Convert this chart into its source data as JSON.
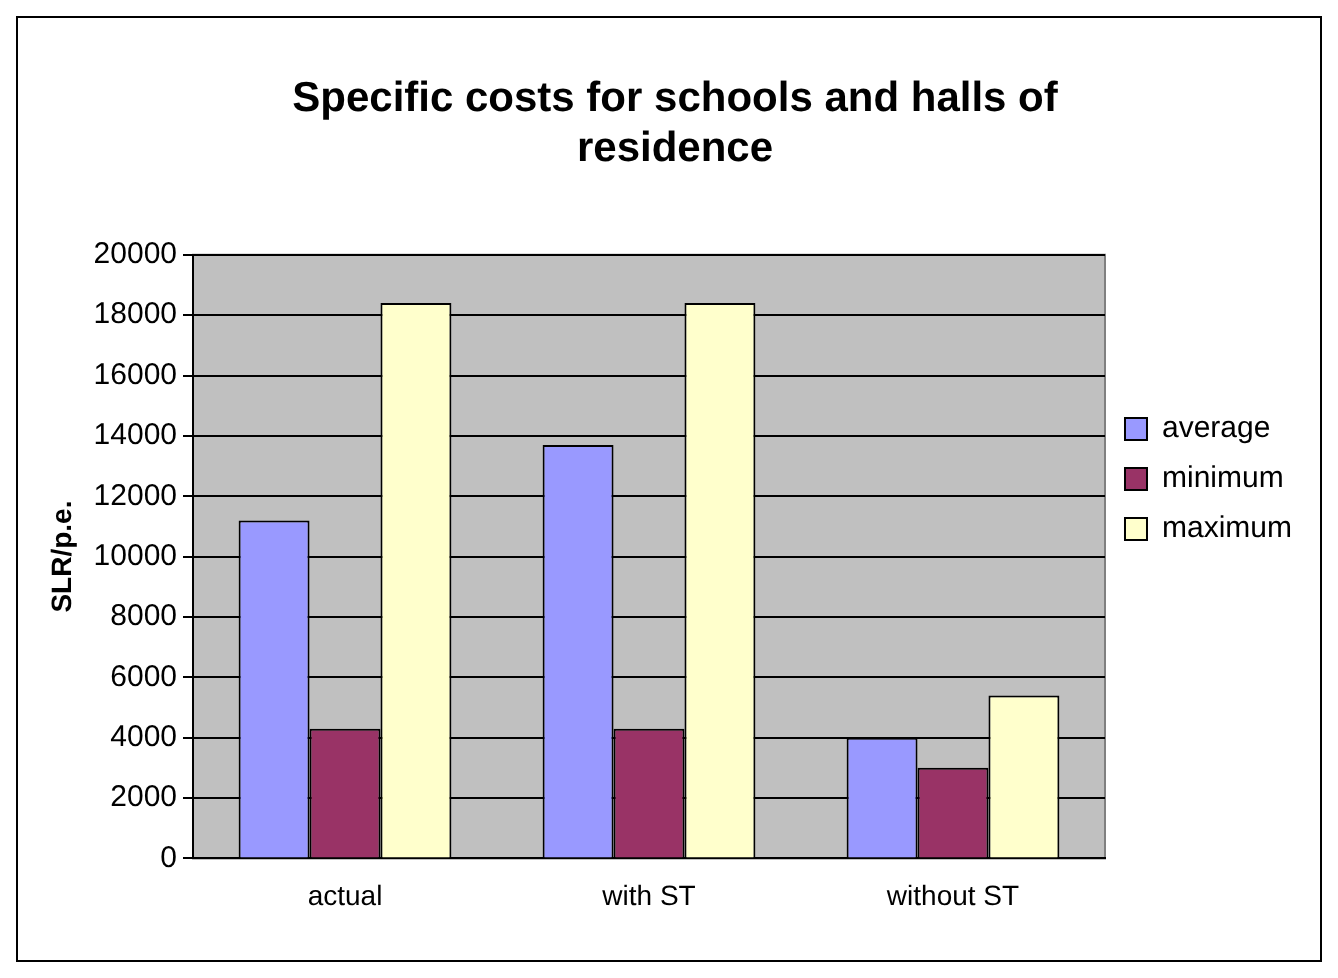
{
  "chart_data": {
    "type": "bar",
    "title": "Specific costs for schools and halls of residence",
    "ylabel": "SLR/p.e.",
    "categories": [
      "actual",
      "with ST",
      "without ST"
    ],
    "series": [
      {
        "name": "average",
        "color": "#9999ff",
        "values": [
          11200,
          13700,
          4000
        ]
      },
      {
        "name": "minimum",
        "color": "#993366",
        "values": [
          4300,
          4300,
          3000
        ]
      },
      {
        "name": "maximum",
        "color": "#ffffcc",
        "values": [
          18400,
          18400,
          5400
        ]
      }
    ],
    "ylim": [
      0,
      20000
    ],
    "yticks": [
      0,
      2000,
      4000,
      6000,
      8000,
      10000,
      12000,
      14000,
      16000,
      18000,
      20000
    ],
    "grid": "y",
    "legend": "right"
  }
}
